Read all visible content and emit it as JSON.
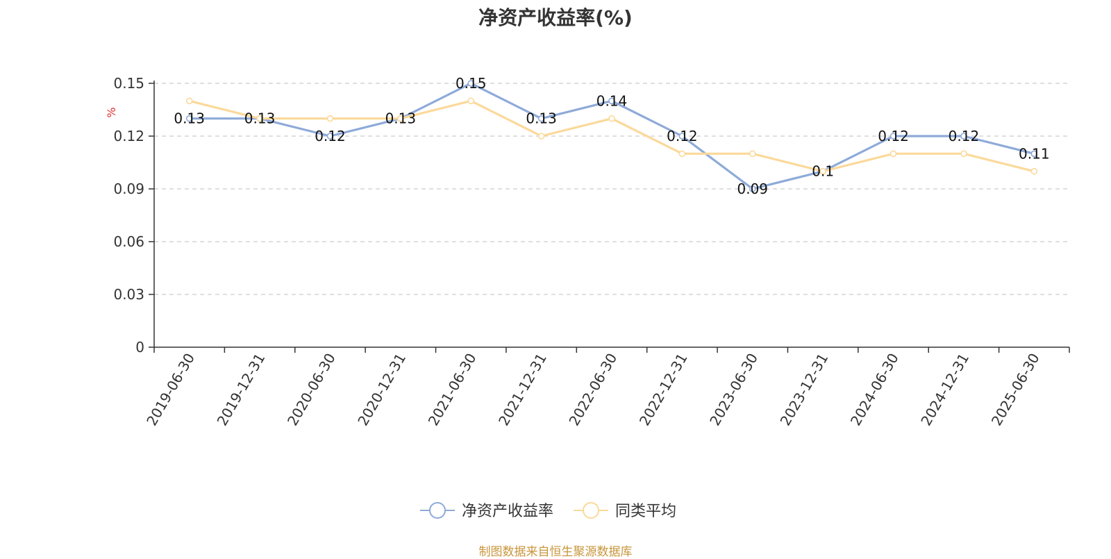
{
  "chart_data": {
    "type": "line",
    "title": "净资产收益率(%)",
    "ylabel": "%",
    "xlabel": "",
    "ylim": [
      0,
      0.15
    ],
    "yticks": [
      "0",
      "0.03",
      "0.06",
      "0.09",
      "0.12",
      "0.15"
    ],
    "grid": true,
    "legend_position": "bottom",
    "categories": [
      "2019-06-30",
      "2019-12-31",
      "2020-06-30",
      "2020-12-31",
      "2021-06-30",
      "2021-12-31",
      "2022-06-30",
      "2022-12-31",
      "2023-06-30",
      "2023-12-31",
      "2024-06-30",
      "2024-12-31",
      "2025-06-30"
    ],
    "series": [
      {
        "name": "净资产收益率",
        "color": "#8eaad8",
        "values": [
          0.13,
          0.13,
          0.12,
          0.13,
          0.15,
          0.13,
          0.14,
          0.12,
          0.09,
          0.1,
          0.12,
          0.12,
          0.11
        ],
        "labels": [
          "0.13",
          "0.13",
          "0.12",
          "0.13",
          "0.15",
          "0.13",
          "0.14",
          "0.12",
          "0.09",
          "0.1",
          "0.12",
          "0.12",
          "0.11"
        ]
      },
      {
        "name": "同类平均",
        "color": "#fbd99a",
        "values": [
          0.14,
          0.13,
          0.13,
          0.13,
          0.14,
          0.12,
          0.13,
          0.11,
          0.11,
          0.1,
          0.11,
          0.11,
          0.1
        ]
      }
    ]
  },
  "source_note": "制图数据来自恒生聚源数据库",
  "colors": {
    "axis": "#333333",
    "grid": "#cccccc",
    "ylabel": "#e03030",
    "source": "#c8963c"
  }
}
